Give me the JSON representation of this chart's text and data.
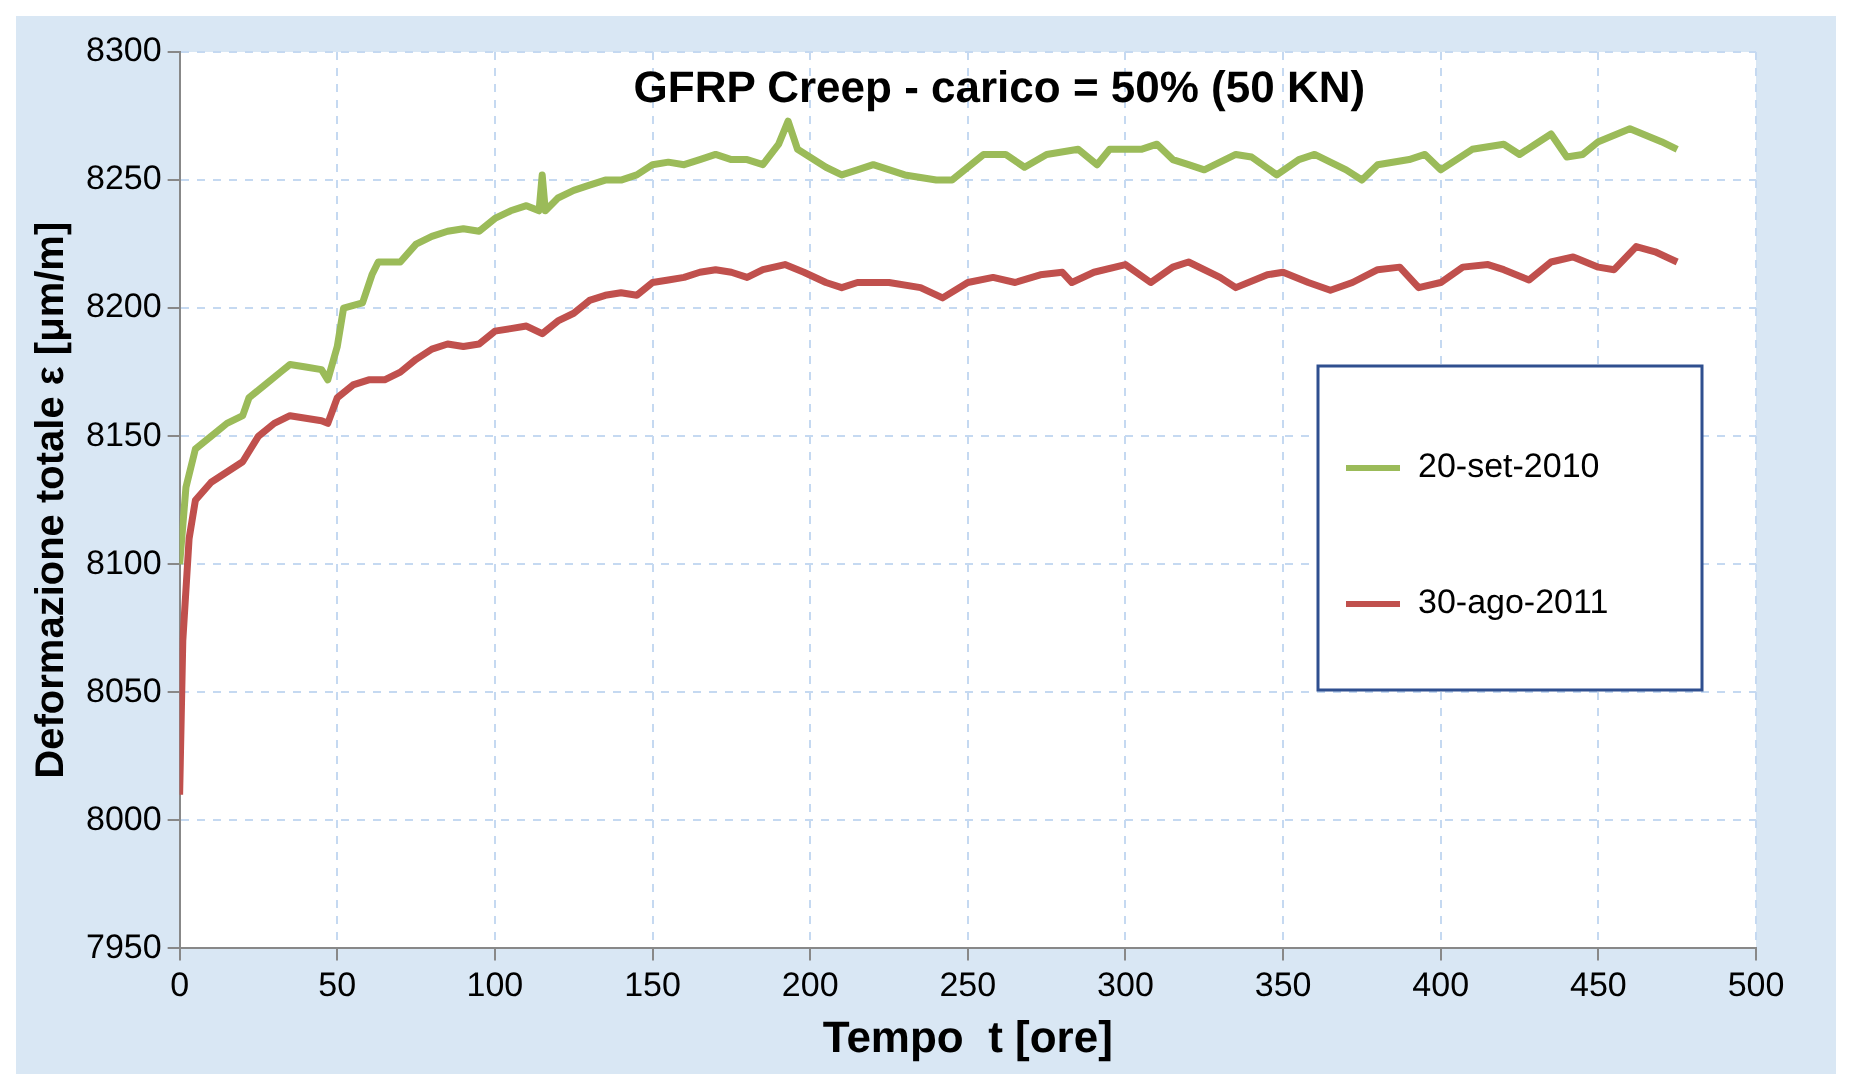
{
  "chart_data": {
    "type": "line",
    "title": "GFRP Creep - carico = 50% (50 KN)",
    "xlabel": "Tempo  t [ore]",
    "ylabel": "Deformazione totale ε [μm/m]",
    "xlim": [
      0,
      500
    ],
    "xticks": [
      0,
      50,
      100,
      150,
      200,
      250,
      300,
      350,
      400,
      450,
      500
    ],
    "ylim": [
      7950,
      8300
    ],
    "yticks": [
      7950,
      8000,
      8050,
      8100,
      8150,
      8200,
      8250,
      8300
    ],
    "grid": true,
    "legend": "right",
    "marker": "none",
    "line_style": "solid",
    "series": [
      {
        "name": "20-set-2010",
        "color": "#9bbb59",
        "x": [
          0,
          2,
          5,
          10,
          15,
          20,
          22,
          27,
          32,
          35,
          40,
          45,
          47,
          50,
          52,
          58,
          61,
          63,
          70,
          75,
          80,
          85,
          90,
          95,
          100,
          105,
          110,
          114,
          115,
          116,
          120,
          125,
          130,
          135,
          140,
          145,
          150,
          155,
          160,
          165,
          170,
          175,
          180,
          185,
          190,
          193,
          196,
          205,
          210,
          215,
          220,
          230,
          240,
          245,
          255,
          262,
          268,
          275,
          285,
          291,
          295,
          305,
          310,
          315,
          320,
          325,
          335,
          340,
          348,
          355,
          360,
          370,
          375,
          380,
          390,
          395,
          400,
          410,
          420,
          425,
          430,
          435,
          440,
          445,
          450,
          460,
          470,
          475
        ],
        "values": [
          8100,
          8130,
          8145,
          8150,
          8155,
          8158,
          8165,
          8170,
          8175,
          8178,
          8177,
          8176,
          8172,
          8185,
          8200,
          8202,
          8213,
          8218,
          8218,
          8225,
          8228,
          8230,
          8231,
          8230,
          8235,
          8238,
          8240,
          8238,
          8252,
          8238,
          8243,
          8246,
          8248,
          8250,
          8250,
          8252,
          8256,
          8257,
          8256,
          8258,
          8260,
          8258,
          8258,
          8256,
          8264,
          8273,
          8262,
          8255,
          8252,
          8254,
          8256,
          8252,
          8250,
          8250,
          8260,
          8260,
          8255,
          8260,
          8262,
          8256,
          8262,
          8262,
          8264,
          8258,
          8256,
          8254,
          8260,
          8259,
          8252,
          8258,
          8260,
          8254,
          8250,
          8256,
          8258,
          8260,
          8254,
          8262,
          8264,
          8260,
          8264,
          8268,
          8259,
          8260,
          8265,
          8270,
          8265,
          8262
        ]
      },
      {
        "name": "30-ago-2011",
        "color": "#c0504d",
        "x": [
          0,
          1,
          3,
          5,
          10,
          15,
          20,
          25,
          30,
          35,
          40,
          45,
          47,
          50,
          55,
          60,
          65,
          70,
          75,
          80,
          85,
          90,
          95,
          100,
          105,
          110,
          115,
          120,
          125,
          130,
          135,
          140,
          145,
          150,
          155,
          160,
          165,
          170,
          175,
          180,
          185,
          192,
          198,
          205,
          210,
          215,
          225,
          235,
          242,
          250,
          258,
          265,
          273,
          280,
          283,
          290,
          300,
          308,
          315,
          320,
          330,
          335,
          345,
          350,
          358,
          365,
          372,
          380,
          387,
          393,
          400,
          407,
          415,
          420,
          428,
          435,
          442,
          450,
          455,
          462,
          468,
          475
        ],
        "values": [
          8010,
          8070,
          8110,
          8125,
          8132,
          8136,
          8140,
          8150,
          8155,
          8158,
          8157,
          8156,
          8155,
          8165,
          8170,
          8172,
          8172,
          8175,
          8180,
          8184,
          8186,
          8185,
          8186,
          8191,
          8192,
          8193,
          8190,
          8195,
          8198,
          8203,
          8205,
          8206,
          8205,
          8210,
          8211,
          8212,
          8214,
          8215,
          8214,
          8212,
          8215,
          8217,
          8214,
          8210,
          8208,
          8210,
          8210,
          8208,
          8204,
          8210,
          8212,
          8210,
          8213,
          8214,
          8210,
          8214,
          8217,
          8210,
          8216,
          8218,
          8212,
          8208,
          8213,
          8214,
          8210,
          8207,
          8210,
          8215,
          8216,
          8208,
          8210,
          8216,
          8217,
          8215,
          8211,
          8218,
          8220,
          8216,
          8215,
          8224,
          8222,
          8218
        ]
      }
    ]
  }
}
